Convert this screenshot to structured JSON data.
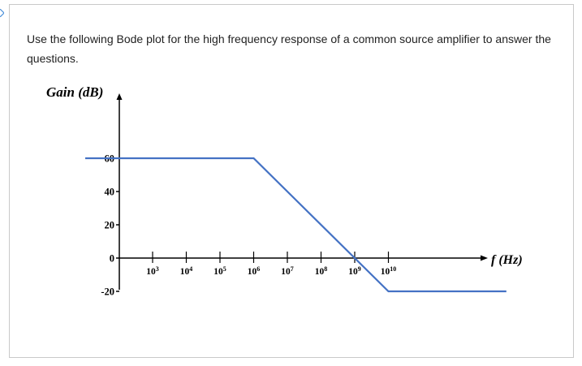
{
  "question": {
    "text": "Use the following Bode plot for the high frequency response of a common source amplifier to answer the questions."
  },
  "colors": {
    "curve": "#4472c4",
    "axis": "#000000",
    "border": "#c9c9c9"
  },
  "chart_data": {
    "type": "line",
    "ylabel": "Gain (dB)",
    "xlabel": "f (Hz)",
    "y_ticks": [
      {
        "value": 60,
        "label": "60"
      },
      {
        "value": 40,
        "label": "40"
      },
      {
        "value": 20,
        "label": "20"
      },
      {
        "value": 0,
        "label": "0"
      },
      {
        "value": -20,
        "label": "-20"
      }
    ],
    "x_ticks": [
      {
        "exp": 3,
        "base": "10",
        "sup": "3"
      },
      {
        "exp": 4,
        "base": "10",
        "sup": "4"
      },
      {
        "exp": 5,
        "base": "10",
        "sup": "5"
      },
      {
        "exp": 6,
        "base": "10",
        "sup": "6"
      },
      {
        "exp": 7,
        "base": "10",
        "sup": "7"
      },
      {
        "exp": 8,
        "base": "10",
        "sup": "8"
      },
      {
        "exp": 9,
        "base": "10",
        "sup": "9"
      },
      {
        "exp": 10,
        "base": "10",
        "sup": "10"
      }
    ],
    "series": [
      {
        "points": [
          {
            "x_exp": 1,
            "gain_db": 60
          },
          {
            "x_exp": 6,
            "gain_db": 60
          },
          {
            "x_exp": 10,
            "gain_db": -20
          },
          {
            "x_exp": 13.5,
            "gain_db": -20
          }
        ]
      }
    ],
    "ylim": [
      -20,
      60
    ],
    "xlim_exp": [
      1,
      13.5
    ]
  }
}
